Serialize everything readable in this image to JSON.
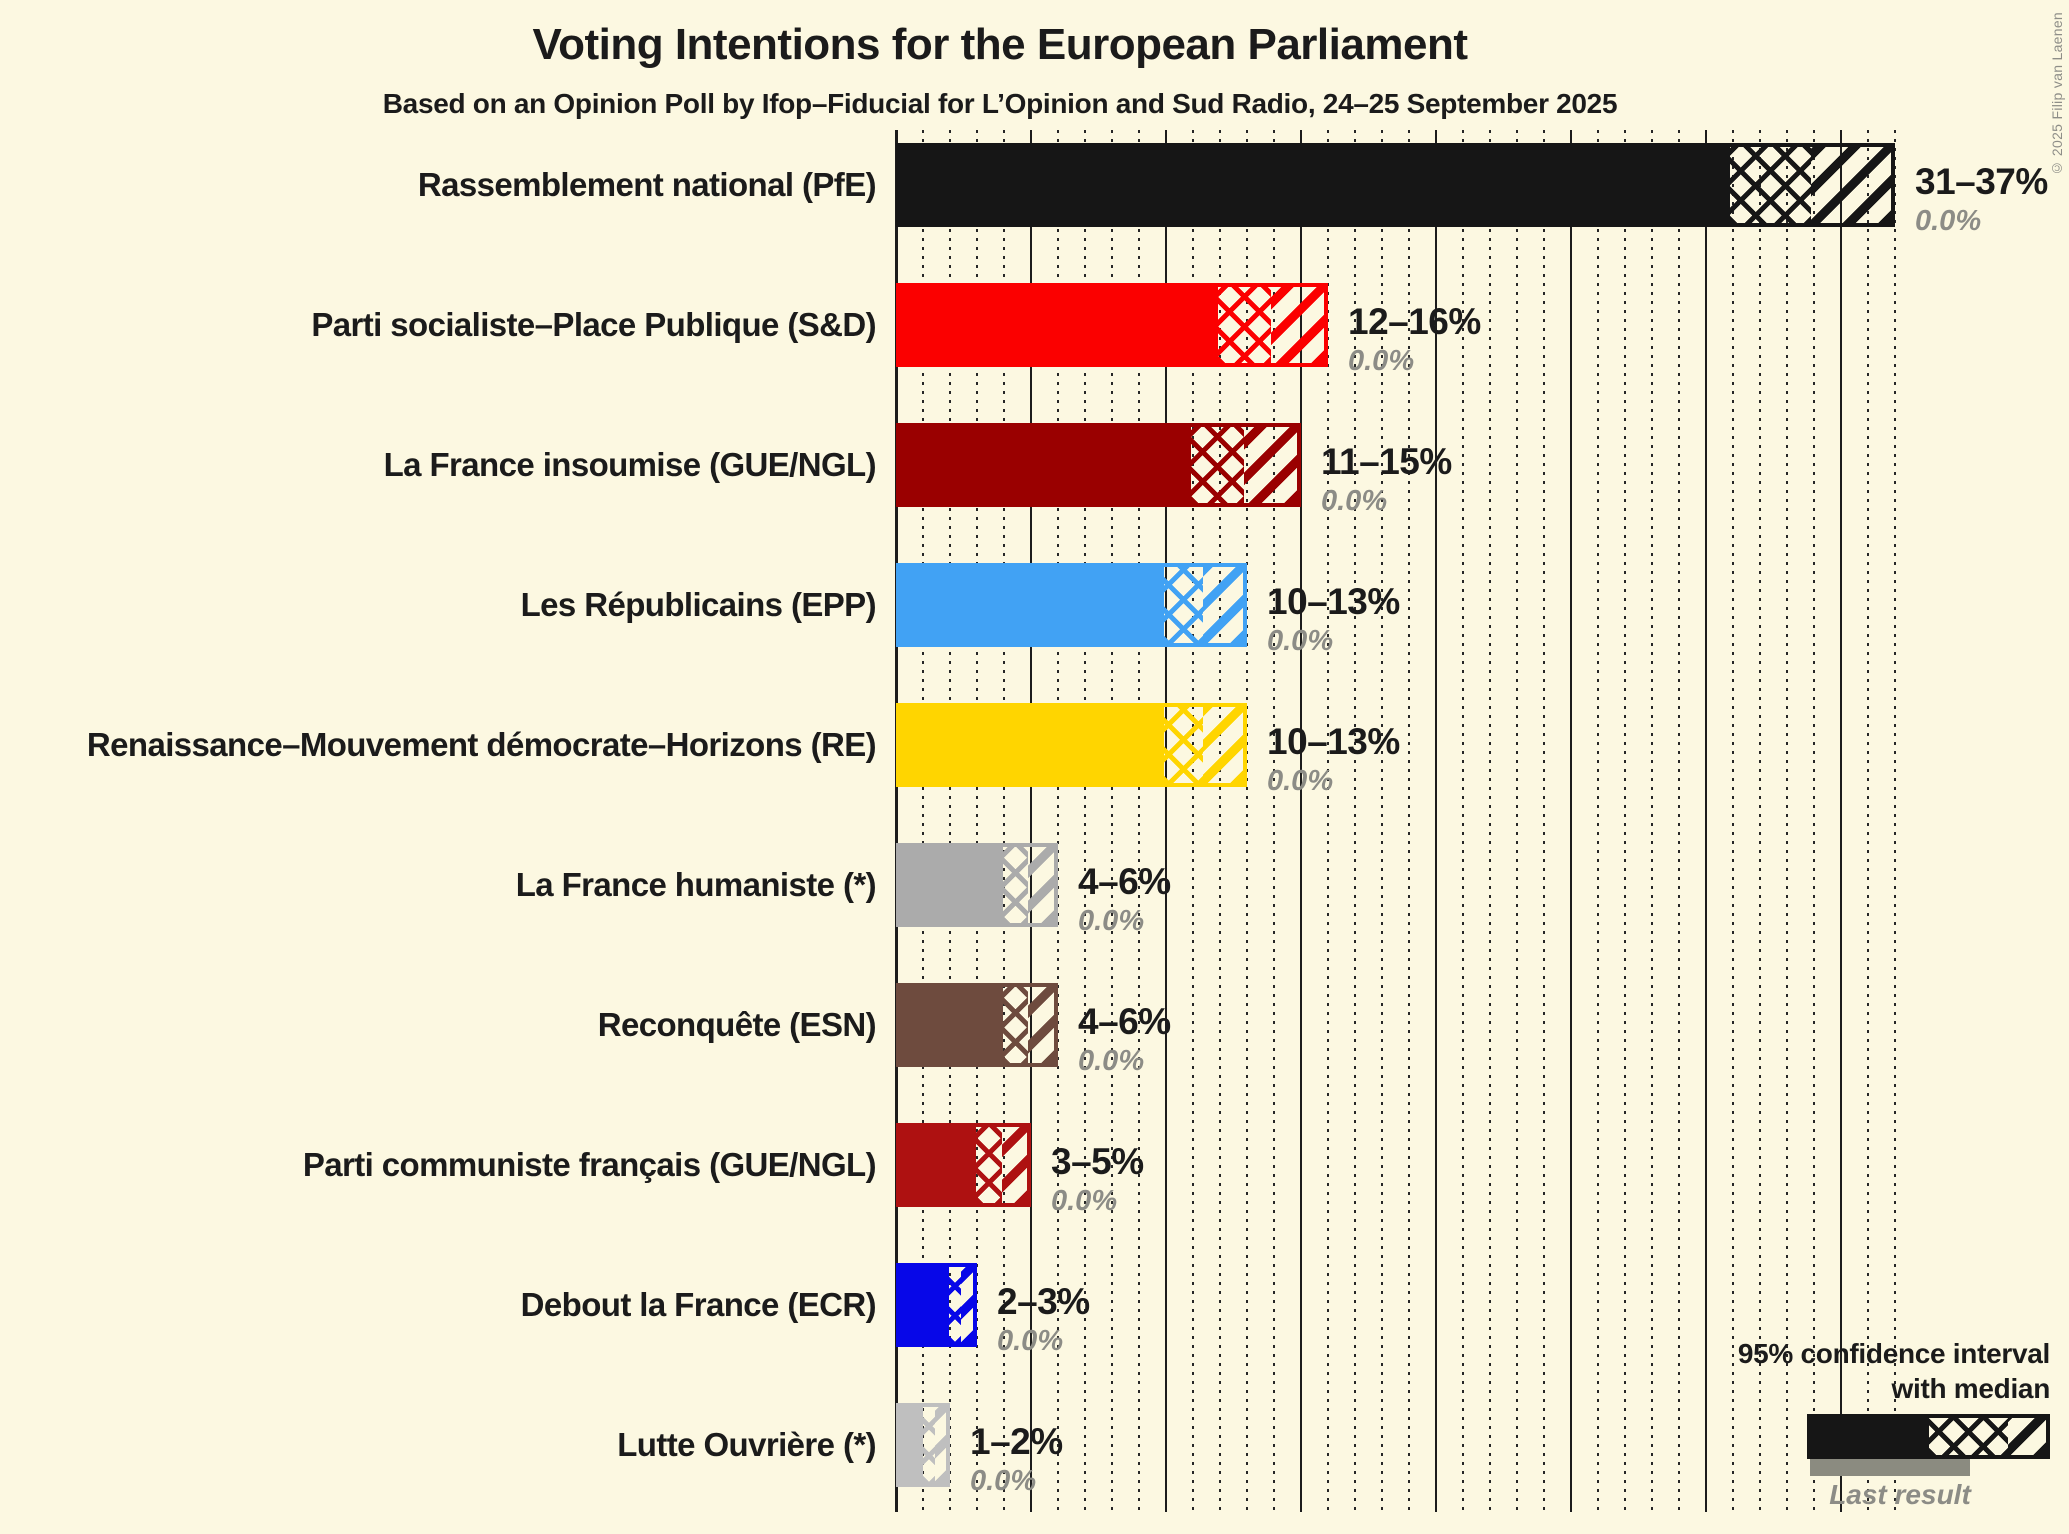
{
  "title": "Voting Intentions for the European Parliament",
  "subtitle": "Based on an Opinion Poll by Ifop–Fiducial for L’Opinion and Sud Radio, 24–25 September 2025",
  "copyright": "© 2025 Filip van Laenen",
  "legend": {
    "ci_line1": "95% confidence interval",
    "ci_line2": "with median",
    "last_result": "Last result"
  },
  "colors": {
    "background": "#FCF8E1",
    "text": "#1B1B1B",
    "muted_text": "#8C8C86",
    "last_result_bar": "#8B8B80"
  },
  "chart_data": {
    "type": "bar",
    "orientation": "horizontal",
    "unit": "%",
    "x_min": 0,
    "x_max": 37,
    "minor_grid_step": 1,
    "major_grid_step": 5,
    "grid": true,
    "legend_position": "bottom-right",
    "bars": [
      {
        "party": "Rassemblement national (PfE)",
        "range_label": "31–37%",
        "low": 31,
        "median": 34,
        "high": 37,
        "last_result": 0.0,
        "last_result_label": "0.0%",
        "color": "#161616"
      },
      {
        "party": "Parti socialiste–Place Publique (S&D)",
        "range_label": "12–16%",
        "low": 12,
        "median": 14,
        "high": 16,
        "last_result": 0.0,
        "last_result_label": "0.0%",
        "color": "#FB0000"
      },
      {
        "party": "La France insoumise (GUE/NGL)",
        "range_label": "11–15%",
        "low": 11,
        "median": 13,
        "high": 15,
        "last_result": 0.0,
        "last_result_label": "0.0%",
        "color": "#9A0000"
      },
      {
        "party": "Les Républicains (EPP)",
        "range_label": "10–13%",
        "low": 10,
        "median": 11.5,
        "high": 13,
        "last_result": 0.0,
        "last_result_label": "0.0%",
        "color": "#41A2F4"
      },
      {
        "party": "Renaissance–Mouvement démocrate–Horizons (RE)",
        "range_label": "10–13%",
        "low": 10,
        "median": 11.5,
        "high": 13,
        "last_result": 0.0,
        "last_result_label": "0.0%",
        "color": "#FFD500"
      },
      {
        "party": "La France humaniste (*)",
        "range_label": "4–6%",
        "low": 4,
        "median": 5,
        "high": 6,
        "last_result": 0.0,
        "last_result_label": "0.0%",
        "color": "#ABABAB"
      },
      {
        "party": "Reconquête (ESN)",
        "range_label": "4–6%",
        "low": 4,
        "median": 5,
        "high": 6,
        "last_result": 0.0,
        "last_result_label": "0.0%",
        "color": "#6E4B3E"
      },
      {
        "party": "Parti communiste français (GUE/NGL)",
        "range_label": "3–5%",
        "low": 3,
        "median": 4,
        "high": 5,
        "last_result": 0.0,
        "last_result_label": "0.0%",
        "color": "#AE1111"
      },
      {
        "party": "Debout la France (ECR)",
        "range_label": "2–3%",
        "low": 2,
        "median": 2.5,
        "high": 3,
        "last_result": 0.0,
        "last_result_label": "0.0%",
        "color": "#0707E8"
      },
      {
        "party": "Lutte Ouvrière (*)",
        "range_label": "1–2%",
        "low": 1,
        "median": 1.5,
        "high": 2,
        "last_result": 0.0,
        "last_result_label": "0.0%",
        "color": "#BFBFBF"
      }
    ]
  }
}
